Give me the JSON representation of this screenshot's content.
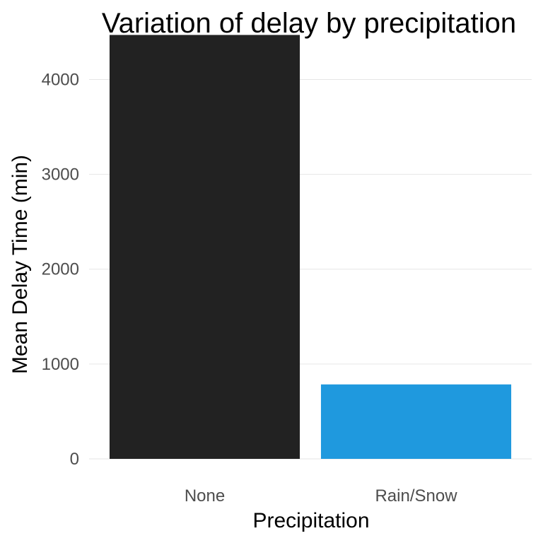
{
  "chart_data": {
    "type": "bar",
    "title": "Variation of delay by precipitation",
    "xlabel": "Precipitation",
    "ylabel": "Mean Delay Time (min)",
    "categories": [
      "None",
      "Rain/Snow"
    ],
    "values": [
      4470,
      785
    ],
    "colors": [
      "#222222",
      "#1f99de"
    ],
    "ylim": [
      0,
      4600
    ],
    "yticks": [
      0,
      1000,
      2000,
      3000,
      4000
    ],
    "grid": true,
    "legend": "none"
  }
}
